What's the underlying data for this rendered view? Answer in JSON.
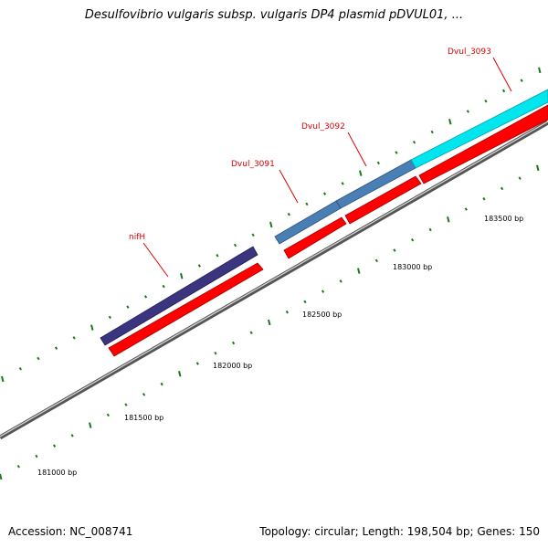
{
  "title": "Desulfovibrio vulgaris subsp. vulgaris DP4 plasmid pDVUL01, ...",
  "footer": {
    "accession": "Accession: NC_008741",
    "summary": "Topology: circular; Length: 198,504 bp; Genes: 150"
  },
  "colors": {
    "backbone": "#8c8c8c",
    "cds_arrow": "#ff0000",
    "tick": "#1a7a1a",
    "label": "#e00000",
    "nifH": "#3b3580",
    "Dvul_3091": "#4a7fb5",
    "Dvul_3092": "#4a7fb5",
    "Dvul_3093": "#00e5ee"
  },
  "position_labels": [
    "181000 bp",
    "181500 bp",
    "182000 bp",
    "182500 bp",
    "183000 bp",
    "183500 bp"
  ],
  "genes": [
    {
      "name": "nifH",
      "feature": "gene"
    },
    {
      "name": "Dvul_3091",
      "feature": "gene"
    },
    {
      "name": "Dvul_3092",
      "feature": "gene"
    },
    {
      "name": "Dvul_3093",
      "feature": "gene"
    }
  ]
}
